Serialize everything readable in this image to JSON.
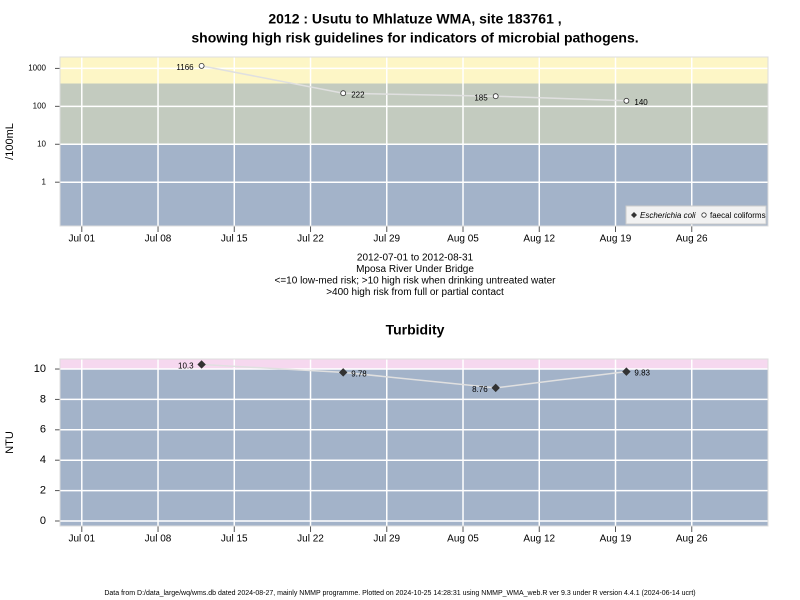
{
  "chart_data": [
    {
      "type": "line",
      "log_y": true,
      "title": [
        "2012 : Usutu to Mhlatuze WMA, site 183761 ,",
        "showing high risk guidelines for indicators of microbial pathogens."
      ],
      "ylabel": "/100mL",
      "x": [
        "2012-07-12",
        "2012-07-25",
        "2012-08-08",
        "2012-08-20"
      ],
      "xlim": [
        "2012-06-29",
        "2012-09-02"
      ],
      "xticks": [
        {
          "value": "2012-07-01",
          "label": "Jul 01"
        },
        {
          "value": "2012-07-08",
          "label": "Jul 08"
        },
        {
          "value": "2012-07-15",
          "label": "Jul 15"
        },
        {
          "value": "2012-07-22",
          "label": "Jul 22"
        },
        {
          "value": "2012-07-29",
          "label": "Jul 29"
        },
        {
          "value": "2012-08-05",
          "label": "Aug 05"
        },
        {
          "value": "2012-08-12",
          "label": "Aug 12"
        },
        {
          "value": "2012-08-19",
          "label": "Aug 19"
        },
        {
          "value": "2012-08-26",
          "label": "Aug 26"
        }
      ],
      "ylim": [
        0.07,
        2000
      ],
      "yticks": [
        1,
        10,
        100,
        1000
      ],
      "grid": true,
      "bands": [
        {
          "lo": null,
          "hi": 10,
          "color": "#a3b3c9"
        },
        {
          "lo": 10,
          "hi": 400,
          "color": "#c3cbbf"
        },
        {
          "lo": 400,
          "hi": null,
          "color": "#fdf6c6"
        }
      ],
      "legend": "lower right",
      "series": [
        {
          "name": "Escherichia coli",
          "marker": "diamond",
          "color": "#333333",
          "values": [
            null,
            null,
            null,
            null
          ]
        },
        {
          "name": "faecal coliforms",
          "marker": "circle",
          "color": "#333333",
          "values": [
            1166,
            222,
            185,
            140
          ]
        }
      ],
      "notes": [
        "2012-07-01 to 2012-08-31",
        "Mposa River Under Bridge",
        "<=10 low-med risk; >10 high risk when drinking untreated water",
        ">400 high risk from full or partial contact"
      ]
    },
    {
      "type": "line",
      "log_y": false,
      "title": [
        "Turbidity"
      ],
      "ylabel": "NTU",
      "x": [
        "2012-07-12",
        "2012-07-25",
        "2012-08-08",
        "2012-08-20"
      ],
      "xlim": [
        "2012-06-29",
        "2012-09-02"
      ],
      "xticks": [
        {
          "value": "2012-07-01",
          "label": "Jul 01"
        },
        {
          "value": "2012-07-08",
          "label": "Jul 08"
        },
        {
          "value": "2012-07-15",
          "label": "Jul 15"
        },
        {
          "value": "2012-07-22",
          "label": "Jul 22"
        },
        {
          "value": "2012-07-29",
          "label": "Jul 29"
        },
        {
          "value": "2012-08-05",
          "label": "Aug 05"
        },
        {
          "value": "2012-08-12",
          "label": "Aug 12"
        },
        {
          "value": "2012-08-19",
          "label": "Aug 19"
        },
        {
          "value": "2012-08-26",
          "label": "Aug 26"
        }
      ],
      "ylim": [
        -0.33,
        10.66
      ],
      "yticks": [
        0,
        2,
        4,
        6,
        8,
        10
      ],
      "grid": true,
      "bands": [
        {
          "lo": null,
          "hi": 10,
          "color": "#a3b3c9"
        },
        {
          "lo": 10,
          "hi": null,
          "color": "#f6d8ef"
        }
      ],
      "marker": "diamond",
      "color": "#333333",
      "values": [
        10.3,
        9.78,
        8.76,
        9.83
      ]
    }
  ],
  "footer": "Data from D:/data_large/wq/wms.db dated 2024-08-27, mainly NMMP programme. Plotted on 2024-10-25 14:28:31 using NMMP_WMA_web.R ver 9.3 under R version 4.4.1 (2024-06-14 ucrt)"
}
